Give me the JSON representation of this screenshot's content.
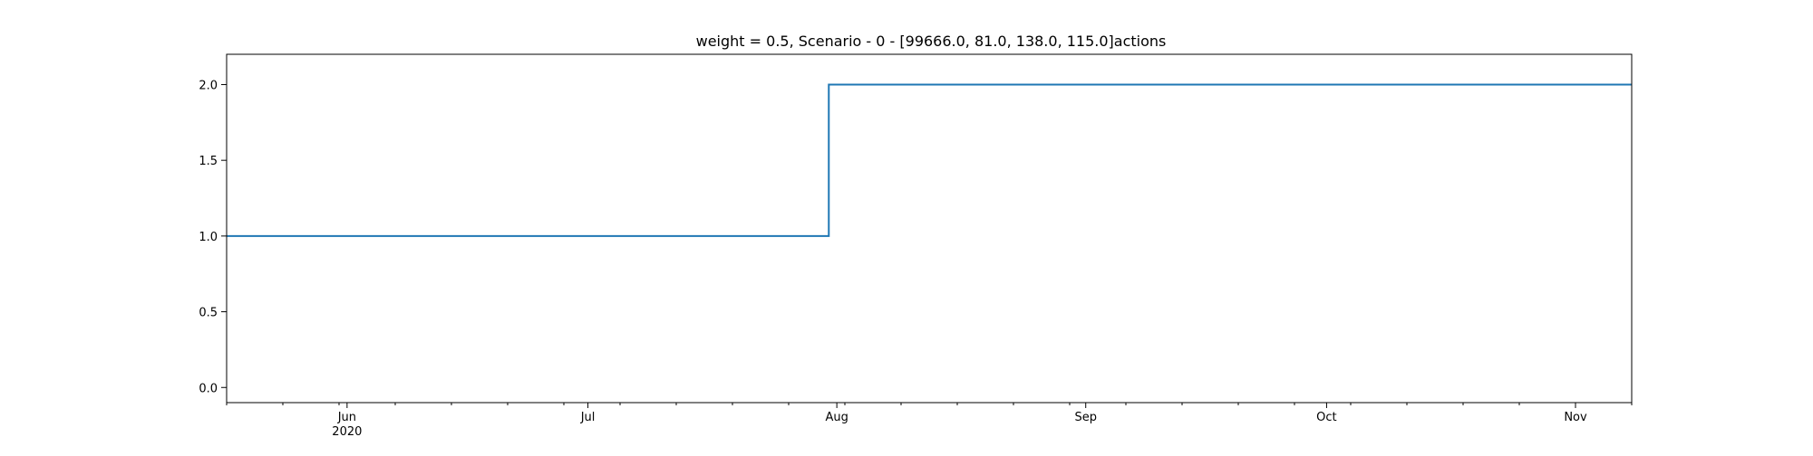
{
  "chart_data": {
    "type": "line",
    "drawstyle": "steps-post",
    "title": "weight = 0.5, Scenario - 0 - [99666.0, 81.0, 138.0, 115.0]actions",
    "xlabel": "",
    "ylabel": "",
    "xlim": [
      "2020-05-17",
      "2020-11-08"
    ],
    "ylim": [
      -0.1,
      2.2
    ],
    "grid": false,
    "legend": "none",
    "x_ticks": [
      {
        "date": "2020-06-01",
        "label": "Jun",
        "sublabel": "2020"
      },
      {
        "date": "2020-07-01",
        "label": "Jul",
        "sublabel": ""
      },
      {
        "date": "2020-08-01",
        "label": "Aug",
        "sublabel": ""
      },
      {
        "date": "2020-09-01",
        "label": "Sep",
        "sublabel": ""
      },
      {
        "date": "2020-10-01",
        "label": "Oct",
        "sublabel": ""
      },
      {
        "date": "2020-11-01",
        "label": "Nov",
        "sublabel": ""
      }
    ],
    "y_ticks": [
      {
        "value": 0.0,
        "label": "0.0"
      },
      {
        "value": 0.5,
        "label": "0.5"
      },
      {
        "value": 1.0,
        "label": "1.0"
      },
      {
        "value": 1.5,
        "label": "1.5"
      },
      {
        "value": 2.0,
        "label": "2.0"
      }
    ],
    "series": [
      {
        "color": "#1f77b4",
        "x": [
          "2020-05-17",
          "2020-07-31",
          "2020-11-08"
        ],
        "y": [
          1.0,
          2.0,
          2.0
        ]
      }
    ]
  }
}
